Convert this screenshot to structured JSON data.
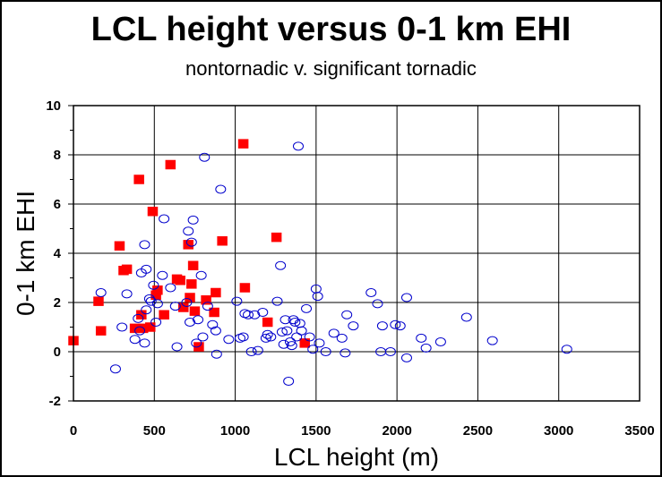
{
  "chart_data": {
    "type": "scatter",
    "title": "LCL height versus 0-1 km EHI",
    "subtitle": "nontornadic v. significant tornadic",
    "xlabel": "LCL height (m)",
    "ylabel": "0-1 km EHI",
    "xlim": [
      0,
      3500
    ],
    "ylim": [
      -2,
      10
    ],
    "x_ticks": [
      "0",
      "500",
      "1000",
      "1500",
      "2000",
      "2500",
      "3000",
      "3500"
    ],
    "y_ticks": [
      "-2",
      "0",
      "2",
      "4",
      "6",
      "8",
      "10"
    ],
    "grid": true,
    "series": [
      {
        "marker": "square",
        "color": "#ff0000",
        "points": [
          [
            0,
            0.45
          ],
          [
            155,
            2.05
          ],
          [
            170,
            0.85
          ],
          [
            285,
            4.3
          ],
          [
            310,
            3.3
          ],
          [
            330,
            3.35
          ],
          [
            380,
            0.95
          ],
          [
            405,
            7.0
          ],
          [
            420,
            1.5
          ],
          [
            430,
            0.95
          ],
          [
            475,
            1.0
          ],
          [
            490,
            5.7
          ],
          [
            510,
            2.3
          ],
          [
            520,
            2.5
          ],
          [
            560,
            1.5
          ],
          [
            600,
            7.6
          ],
          [
            640,
            2.95
          ],
          [
            660,
            2.9
          ],
          [
            680,
            1.8
          ],
          [
            710,
            4.35
          ],
          [
            720,
            2.2
          ],
          [
            730,
            2.75
          ],
          [
            740,
            3.5
          ],
          [
            750,
            1.65
          ],
          [
            775,
            0.2
          ],
          [
            820,
            2.1
          ],
          [
            870,
            1.6
          ],
          [
            880,
            2.4
          ],
          [
            920,
            4.5
          ],
          [
            1050,
            8.45
          ],
          [
            1060,
            2.6
          ],
          [
            1255,
            4.65
          ],
          [
            1200,
            1.2
          ],
          [
            1430,
            0.35
          ]
        ]
      },
      {
        "marker": "circle",
        "color": "#0000cc",
        "points": [
          [
            170,
            2.4
          ],
          [
            260,
            -0.7
          ],
          [
            300,
            1.0
          ],
          [
            330,
            2.35
          ],
          [
            380,
            0.5
          ],
          [
            400,
            1.35
          ],
          [
            410,
            0.85
          ],
          [
            420,
            3.2
          ],
          [
            440,
            4.35
          ],
          [
            450,
            3.35
          ],
          [
            440,
            0.35
          ],
          [
            450,
            1.7
          ],
          [
            470,
            2.15
          ],
          [
            480,
            2.05
          ],
          [
            495,
            2.7
          ],
          [
            510,
            1.2
          ],
          [
            520,
            1.95
          ],
          [
            550,
            3.1
          ],
          [
            560,
            5.4
          ],
          [
            600,
            2.6
          ],
          [
            630,
            1.85
          ],
          [
            640,
            0.2
          ],
          [
            700,
            2.0
          ],
          [
            710,
            4.9
          ],
          [
            720,
            1.2
          ],
          [
            730,
            4.45
          ],
          [
            740,
            5.35
          ],
          [
            760,
            0.35
          ],
          [
            770,
            1.3
          ],
          [
            790,
            3.1
          ],
          [
            800,
            0.6
          ],
          [
            810,
            7.9
          ],
          [
            830,
            1.85
          ],
          [
            860,
            1.1
          ],
          [
            880,
            0.85
          ],
          [
            885,
            -0.1
          ],
          [
            910,
            6.6
          ],
          [
            960,
            0.5
          ],
          [
            1010,
            2.05
          ],
          [
            1030,
            0.55
          ],
          [
            1050,
            0.6
          ],
          [
            1060,
            1.55
          ],
          [
            1080,
            1.5
          ],
          [
            1100,
            0.0
          ],
          [
            1120,
            1.5
          ],
          [
            1140,
            0.05
          ],
          [
            1170,
            1.6
          ],
          [
            1190,
            0.55
          ],
          [
            1200,
            0.7
          ],
          [
            1220,
            0.6
          ],
          [
            1260,
            2.05
          ],
          [
            1280,
            3.5
          ],
          [
            1290,
            0.8
          ],
          [
            1300,
            0.3
          ],
          [
            1310,
            1.3
          ],
          [
            1320,
            0.85
          ],
          [
            1330,
            -1.2
          ],
          [
            1340,
            0.4
          ],
          [
            1350,
            0.25
          ],
          [
            1360,
            1.3
          ],
          [
            1370,
            1.2
          ],
          [
            1380,
            0.6
          ],
          [
            1390,
            8.35
          ],
          [
            1400,
            1.15
          ],
          [
            1410,
            0.85
          ],
          [
            1440,
            1.75
          ],
          [
            1460,
            0.6
          ],
          [
            1480,
            0.1
          ],
          [
            1500,
            2.55
          ],
          [
            1510,
            2.25
          ],
          [
            1520,
            0.35
          ],
          [
            1560,
            0.0
          ],
          [
            1610,
            0.75
          ],
          [
            1660,
            0.55
          ],
          [
            1680,
            -0.05
          ],
          [
            1690,
            1.5
          ],
          [
            1730,
            1.05
          ],
          [
            1840,
            2.4
          ],
          [
            1880,
            1.95
          ],
          [
            1910,
            1.05
          ],
          [
            1900,
            0.0
          ],
          [
            1960,
            0.0
          ],
          [
            1990,
            1.1
          ],
          [
            2020,
            1.05
          ],
          [
            2060,
            2.2
          ],
          [
            2060,
            -0.25
          ],
          [
            2150,
            0.55
          ],
          [
            2180,
            0.15
          ],
          [
            2270,
            0.4
          ],
          [
            2430,
            1.4
          ],
          [
            2590,
            0.45
          ],
          [
            3050,
            0.1
          ]
        ]
      }
    ]
  }
}
